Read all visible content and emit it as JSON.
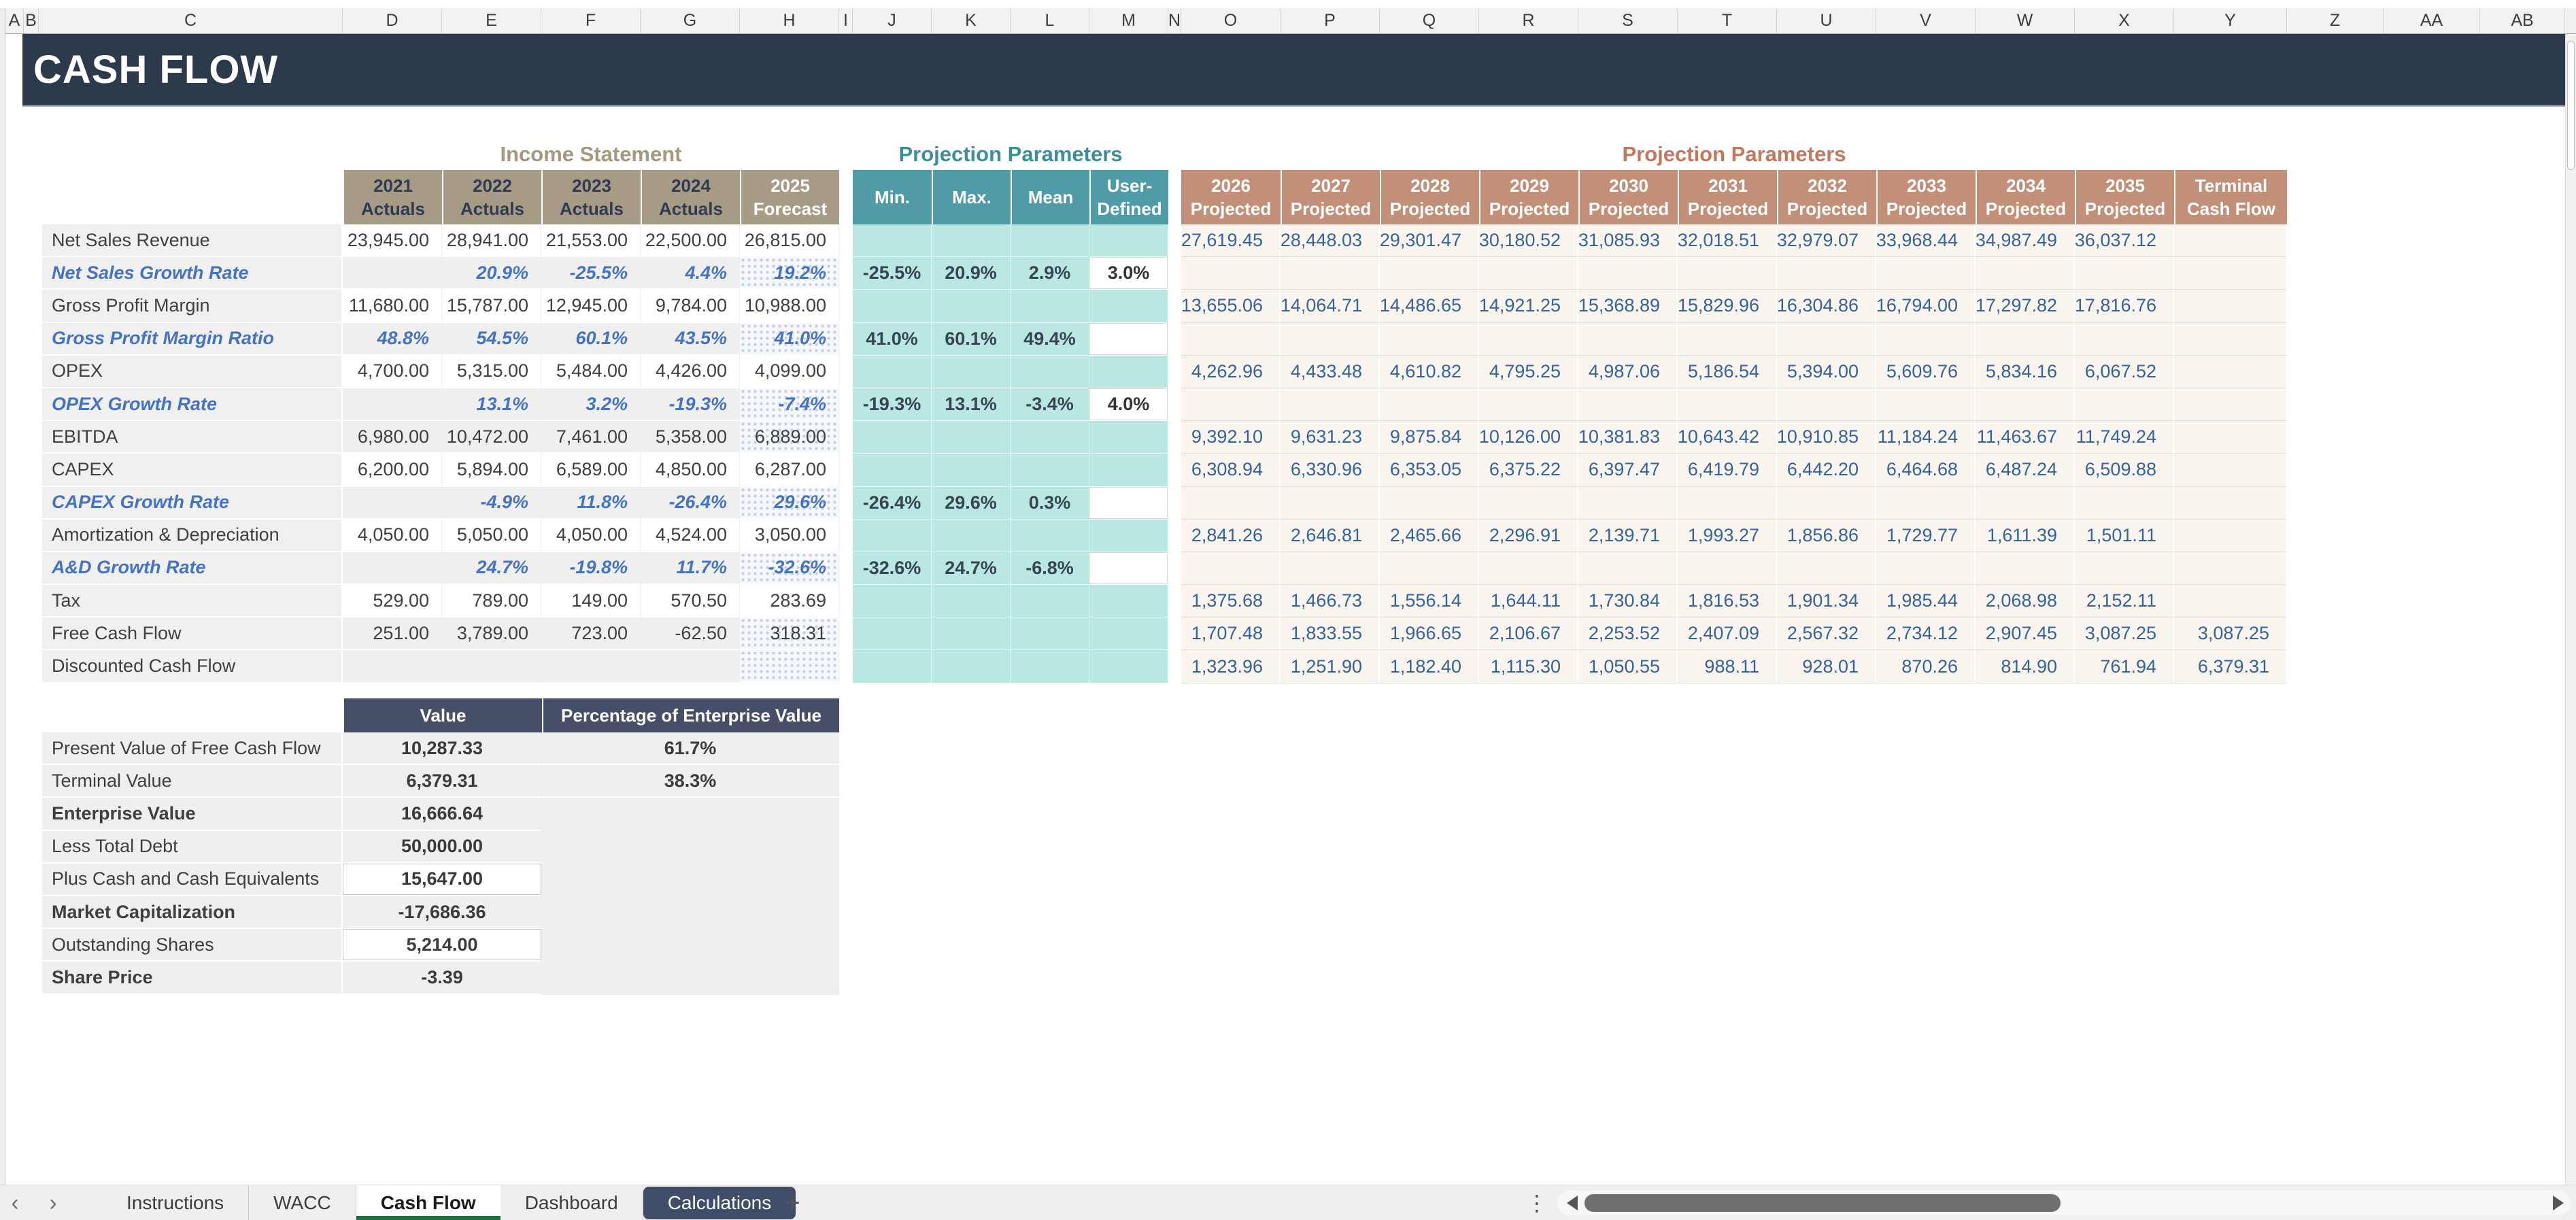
{
  "app": {
    "title": "CASH FLOW"
  },
  "grid": {
    "column_letters": [
      "A",
      "B",
      "C",
      "D",
      "E",
      "F",
      "G",
      "H",
      "I",
      "J",
      "K",
      "L",
      "M",
      "N",
      "O",
      "P",
      "Q",
      "R",
      "S",
      "T",
      "U",
      "V",
      "W",
      "X",
      "Y",
      "Z",
      "AA",
      "AB"
    ]
  },
  "income_statement": {
    "title": "Income Statement",
    "columns": [
      {
        "year": "2021",
        "label": "Actuals"
      },
      {
        "year": "2022",
        "label": "Actuals"
      },
      {
        "year": "2023",
        "label": "Actuals"
      },
      {
        "year": "2024",
        "label": "Actuals"
      },
      {
        "year": "2025",
        "label": "Forecast"
      }
    ],
    "rows": [
      {
        "label": "Net Sales Revenue",
        "rate": false,
        "band": false,
        "cells": [
          "23,945.00",
          "28,941.00",
          "21,553.00",
          "22,500.00",
          "26,815.00"
        ]
      },
      {
        "label": "Net Sales Growth Rate",
        "rate": true,
        "band": true,
        "cells": [
          "",
          "20.9%",
          "-25.5%",
          "4.4%",
          "19.2%"
        ]
      },
      {
        "label": "Gross Profit Margin",
        "rate": false,
        "band": false,
        "cells": [
          "11,680.00",
          "15,787.00",
          "12,945.00",
          "9,784.00",
          "10,988.00"
        ]
      },
      {
        "label": "Gross Profit Margin Ratio",
        "rate": true,
        "band": true,
        "cells": [
          "48.8%",
          "54.5%",
          "60.1%",
          "43.5%",
          "41.0%"
        ]
      },
      {
        "label": "OPEX",
        "rate": false,
        "band": false,
        "cells": [
          "4,700.00",
          "5,315.00",
          "5,484.00",
          "4,426.00",
          "4,099.00"
        ]
      },
      {
        "label": "OPEX Growth Rate",
        "rate": true,
        "band": true,
        "cells": [
          "",
          "13.1%",
          "3.2%",
          "-19.3%",
          "-7.4%"
        ]
      },
      {
        "label": "EBITDA",
        "rate": false,
        "band": true,
        "cells": [
          "6,980.00",
          "10,472.00",
          "7,461.00",
          "5,358.00",
          "6,889.00"
        ]
      },
      {
        "label": "CAPEX",
        "rate": false,
        "band": false,
        "cells": [
          "6,200.00",
          "5,894.00",
          "6,589.00",
          "4,850.00",
          "6,287.00"
        ]
      },
      {
        "label": "CAPEX Growth Rate",
        "rate": true,
        "band": true,
        "cells": [
          "",
          "-4.9%",
          "11.8%",
          "-26.4%",
          "29.6%"
        ]
      },
      {
        "label": "Amortization & Depreciation",
        "rate": false,
        "band": false,
        "cells": [
          "4,050.00",
          "5,050.00",
          "4,050.00",
          "4,524.00",
          "3,050.00"
        ]
      },
      {
        "label": "A&D Growth Rate",
        "rate": true,
        "band": true,
        "cells": [
          "",
          "24.7%",
          "-19.8%",
          "11.7%",
          "-32.6%"
        ]
      },
      {
        "label": "Tax",
        "rate": false,
        "band": false,
        "cells": [
          "529.00",
          "789.00",
          "149.00",
          "570.50",
          "283.69"
        ]
      },
      {
        "label": "Free Cash Flow",
        "rate": false,
        "band": true,
        "cells": [
          "251.00",
          "3,789.00",
          "723.00",
          "-62.50",
          "318.31"
        ]
      },
      {
        "label": "Discounted Cash Flow",
        "rate": false,
        "band": true,
        "cells": [
          "",
          "",
          "",
          "",
          ""
        ]
      }
    ]
  },
  "projection_parameters": {
    "title": "Projection Parameters",
    "columns": [
      "Min.",
      "Max.",
      "Mean",
      "User-Defined"
    ],
    "rows": [
      {
        "cells": [
          "",
          "",
          ""
        ],
        "user": "",
        "user_input": false
      },
      {
        "cells": [
          "-25.5%",
          "20.9%",
          "2.9%"
        ],
        "user": "3.0%",
        "user_input": true
      },
      {
        "cells": [
          "",
          "",
          ""
        ],
        "user": "",
        "user_input": false
      },
      {
        "cells": [
          "41.0%",
          "60.1%",
          "49.4%"
        ],
        "user": "",
        "user_input": true
      },
      {
        "cells": [
          "",
          "",
          ""
        ],
        "user": "",
        "user_input": false
      },
      {
        "cells": [
          "-19.3%",
          "13.1%",
          "-3.4%"
        ],
        "user": "4.0%",
        "user_input": true
      },
      {
        "cells": [
          "",
          "",
          ""
        ],
        "user": "",
        "user_input": false
      },
      {
        "cells": [
          "",
          "",
          ""
        ],
        "user": "",
        "user_input": false
      },
      {
        "cells": [
          "-26.4%",
          "29.6%",
          "0.3%"
        ],
        "user": "",
        "user_input": true
      },
      {
        "cells": [
          "",
          "",
          ""
        ],
        "user": "",
        "user_input": false
      },
      {
        "cells": [
          "-32.6%",
          "24.7%",
          "-6.8%"
        ],
        "user": "",
        "user_input": true
      },
      {
        "cells": [
          "",
          "",
          ""
        ],
        "user": "",
        "user_input": false
      },
      {
        "cells": [
          "",
          "",
          ""
        ],
        "user": "",
        "user_input": false
      },
      {
        "cells": [
          "",
          "",
          ""
        ],
        "user": "",
        "user_input": false
      }
    ]
  },
  "projections": {
    "title": "Projection Parameters",
    "columns": [
      {
        "year": "2026",
        "label": "Projected"
      },
      {
        "year": "2027",
        "label": "Projected"
      },
      {
        "year": "2028",
        "label": "Projected"
      },
      {
        "year": "2029",
        "label": "Projected"
      },
      {
        "year": "2030",
        "label": "Projected"
      },
      {
        "year": "2031",
        "label": "Projected"
      },
      {
        "year": "2032",
        "label": "Projected"
      },
      {
        "year": "2033",
        "label": "Projected"
      },
      {
        "year": "2034",
        "label": "Projected"
      },
      {
        "year": "2035",
        "label": "Projected"
      },
      {
        "year": "Terminal",
        "label": "Cash Flow"
      }
    ],
    "rows": [
      {
        "cells": [
          "27,619.45",
          "28,448.03",
          "29,301.47",
          "30,180.52",
          "31,085.93",
          "32,018.51",
          "32,979.07",
          "33,968.44",
          "34,987.49",
          "36,037.12",
          ""
        ]
      },
      {
        "cells": [
          "",
          "",
          "",
          "",
          "",
          "",
          "",
          "",
          "",
          "",
          ""
        ]
      },
      {
        "cells": [
          "13,655.06",
          "14,064.71",
          "14,486.65",
          "14,921.25",
          "15,368.89",
          "15,829.96",
          "16,304.86",
          "16,794.00",
          "17,297.82",
          "17,816.76",
          ""
        ]
      },
      {
        "cells": [
          "",
          "",
          "",
          "",
          "",
          "",
          "",
          "",
          "",
          "",
          ""
        ]
      },
      {
        "cells": [
          "4,262.96",
          "4,433.48",
          "4,610.82",
          "4,795.25",
          "4,987.06",
          "5,186.54",
          "5,394.00",
          "5,609.76",
          "5,834.16",
          "6,067.52",
          ""
        ]
      },
      {
        "cells": [
          "",
          "",
          "",
          "",
          "",
          "",
          "",
          "",
          "",
          "",
          ""
        ]
      },
      {
        "cells": [
          "9,392.10",
          "9,631.23",
          "9,875.84",
          "10,126.00",
          "10,381.83",
          "10,643.42",
          "10,910.85",
          "11,184.24",
          "11,463.67",
          "11,749.24",
          ""
        ]
      },
      {
        "cells": [
          "6,308.94",
          "6,330.96",
          "6,353.05",
          "6,375.22",
          "6,397.47",
          "6,419.79",
          "6,442.20",
          "6,464.68",
          "6,487.24",
          "6,509.88",
          ""
        ]
      },
      {
        "cells": [
          "",
          "",
          "",
          "",
          "",
          "",
          "",
          "",
          "",
          "",
          ""
        ]
      },
      {
        "cells": [
          "2,841.26",
          "2,646.81",
          "2,465.66",
          "2,296.91",
          "2,139.71",
          "1,993.27",
          "1,856.86",
          "1,729.77",
          "1,611.39",
          "1,501.11",
          ""
        ]
      },
      {
        "cells": [
          "",
          "",
          "",
          "",
          "",
          "",
          "",
          "",
          "",
          "",
          ""
        ]
      },
      {
        "cells": [
          "1,375.68",
          "1,466.73",
          "1,556.14",
          "1,644.11",
          "1,730.84",
          "1,816.53",
          "1,901.34",
          "1,985.44",
          "2,068.98",
          "2,152.11",
          ""
        ]
      },
      {
        "cells": [
          "1,707.48",
          "1,833.55",
          "1,966.65",
          "2,106.67",
          "2,253.52",
          "2,407.09",
          "2,567.32",
          "2,734.12",
          "2,907.45",
          "3,087.25",
          "3,087.25"
        ]
      },
      {
        "cells": [
          "1,323.96",
          "1,251.90",
          "1,182.40",
          "1,115.30",
          "1,050.55",
          "988.11",
          "928.01",
          "870.26",
          "814.90",
          "761.94",
          "6,379.31"
        ]
      }
    ]
  },
  "valuation": {
    "columns": [
      "Value",
      "Percentage of Enterprise Value"
    ],
    "rows": [
      {
        "label": "Present Value of Free Cash Flow",
        "value": "10,287.33",
        "pct": "61.7%",
        "bold": false,
        "input": false
      },
      {
        "label": "Terminal Value",
        "value": "6,379.31",
        "pct": "38.3%",
        "bold": false,
        "input": false
      },
      {
        "label": "Enterprise Value",
        "value": "16,666.64",
        "pct": "",
        "bold": true,
        "input": false
      },
      {
        "label": "Less Total Debt",
        "value": "50,000.00",
        "pct": "",
        "bold": false,
        "input": false
      },
      {
        "label": "Plus Cash and Cash Equivalents",
        "value": "15,647.00",
        "pct": "",
        "bold": false,
        "input": true
      },
      {
        "label": "Market Capitalization",
        "value": "-17,686.36",
        "pct": "",
        "bold": true,
        "input": false
      },
      {
        "label": "Outstanding Shares",
        "value": "5,214.00",
        "pct": "",
        "bold": false,
        "input": true
      },
      {
        "label": "Share Price",
        "value": "-3.39",
        "pct": "",
        "bold": true,
        "input": false
      }
    ]
  },
  "tab_bar": {
    "nav_left": "‹",
    "nav_right": "›",
    "add_label": "+",
    "kebab": "⋮",
    "tabs": [
      {
        "label": "Instructions",
        "active": false,
        "dark": false
      },
      {
        "label": "WACC",
        "active": false,
        "dark": false
      },
      {
        "label": "Cash Flow",
        "active": true,
        "dark": false
      },
      {
        "label": "Dashboard",
        "active": false,
        "dark": false
      },
      {
        "label": "Calculations",
        "active": false,
        "dark": true
      }
    ]
  },
  "colors": {
    "title_bar": "#2d3a4c",
    "tan_header": "#a89b85",
    "teal_header": "#4f9ba7",
    "mint_body": "#bbe7e3",
    "salmon_header": "#c29078",
    "projection_text": "#35639c",
    "rate_blue": "#4472c4",
    "valuation_header": "#474e68",
    "active_tab_green": "#1e7145",
    "dark_tab": "#3f4d68"
  }
}
